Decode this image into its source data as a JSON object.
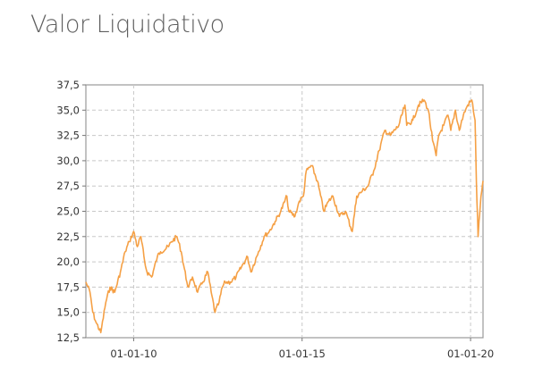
{
  "title": "Valor Liquidativo",
  "chart_data": {
    "type": "line",
    "title": "Valor Liquidativo",
    "xlabel": "",
    "ylabel": "",
    "ylim": [
      12.5,
      37.5
    ],
    "xlim": [
      "2008-08-01",
      "2020-05-15"
    ],
    "y_ticks": [
      "12,5",
      "15,0",
      "17,5",
      "20,0",
      "22,5",
      "25,0",
      "27,5",
      "30,0",
      "32,5",
      "35,0",
      "37,5"
    ],
    "x_ticks": [
      "01-01-10",
      "01-01-15",
      "01-01-20"
    ],
    "grid": true,
    "line_color": "#f5a045",
    "series": [
      {
        "x": [
          "2008-08-01",
          "2008-09-15",
          "2008-10-15",
          "2008-11-20",
          "2009-01-10",
          "2009-03-05",
          "2009-04-20",
          "2009-06-10",
          "2009-08-10",
          "2009-10-01",
          "2009-11-15",
          "2010-01-01",
          "2010-02-10",
          "2010-03-20",
          "2010-05-01",
          "2010-05-25",
          "2010-07-15",
          "2010-09-15",
          "2010-10-20",
          "2011-01-15",
          "2011-02-15",
          "2011-04-15",
          "2011-06-01",
          "2011-08-01",
          "2011-08-20",
          "2011-10-01",
          "2011-11-25",
          "2012-01-20",
          "2012-03-15",
          "2012-04-20",
          "2012-06-01",
          "2012-07-15",
          "2012-08-20",
          "2012-09-20",
          "2012-11-15",
          "2013-01-15",
          "2013-03-15",
          "2013-05-20",
          "2013-06-25",
          "2013-09-15",
          "2013-11-15",
          "2014-01-10",
          "2014-03-15",
          "2014-05-15",
          "2014-07-20",
          "2014-08-10",
          "2014-10-15",
          "2014-12-01",
          "2015-01-15",
          "2015-02-15",
          "2015-04-15",
          "2015-06-15",
          "2015-08-24",
          "2015-10-15",
          "2015-12-01",
          "2016-02-10",
          "2016-04-15",
          "2016-06-27",
          "2016-08-15",
          "2016-10-15",
          "2016-12-15",
          "2017-02-15",
          "2017-04-15",
          "2017-06-15",
          "2017-08-15",
          "2017-11-15",
          "2018-01-20",
          "2018-02-08",
          "2018-04-15",
          "2018-06-15",
          "2018-08-15",
          "2018-10-01",
          "2018-11-15",
          "2018-12-24",
          "2019-01-20",
          "2019-03-15",
          "2019-05-01",
          "2019-06-01",
          "2019-07-20",
          "2019-09-01",
          "2019-10-15",
          "2019-12-01",
          "2020-01-15",
          "2020-02-19",
          "2020-02-28",
          "2020-03-10",
          "2020-03-23",
          "2020-04-01",
          "2020-04-15",
          "2020-05-01",
          "2020-05-15"
        ],
        "values": [
          18.0,
          17.0,
          15.0,
          14.0,
          13.0,
          16.0,
          17.5,
          17.0,
          19.0,
          21.0,
          22.0,
          23.0,
          21.5,
          22.5,
          20.0,
          19.0,
          18.5,
          20.5,
          21.0,
          21.5,
          22.0,
          22.5,
          21.0,
          18.0,
          17.5,
          18.5,
          17.0,
          18.0,
          19.0,
          17.0,
          15.0,
          16.0,
          17.5,
          18.0,
          18.0,
          18.5,
          19.5,
          20.5,
          19.0,
          21.0,
          22.5,
          23.0,
          24.0,
          25.0,
          26.5,
          25.0,
          24.5,
          26.0,
          26.5,
          29.0,
          29.5,
          28.0,
          25.0,
          26.0,
          26.5,
          24.5,
          25.0,
          23.0,
          26.5,
          27.0,
          27.5,
          29.0,
          31.0,
          33.0,
          32.5,
          33.5,
          35.5,
          33.5,
          34.0,
          35.5,
          36.0,
          35.0,
          32.0,
          30.5,
          32.5,
          33.5,
          34.5,
          33.0,
          35.0,
          33.0,
          34.5,
          35.5,
          36.0,
          34.0,
          30.0,
          26.0,
          22.5,
          24.0,
          25.5,
          27.0,
          28.0
        ]
      }
    ]
  }
}
